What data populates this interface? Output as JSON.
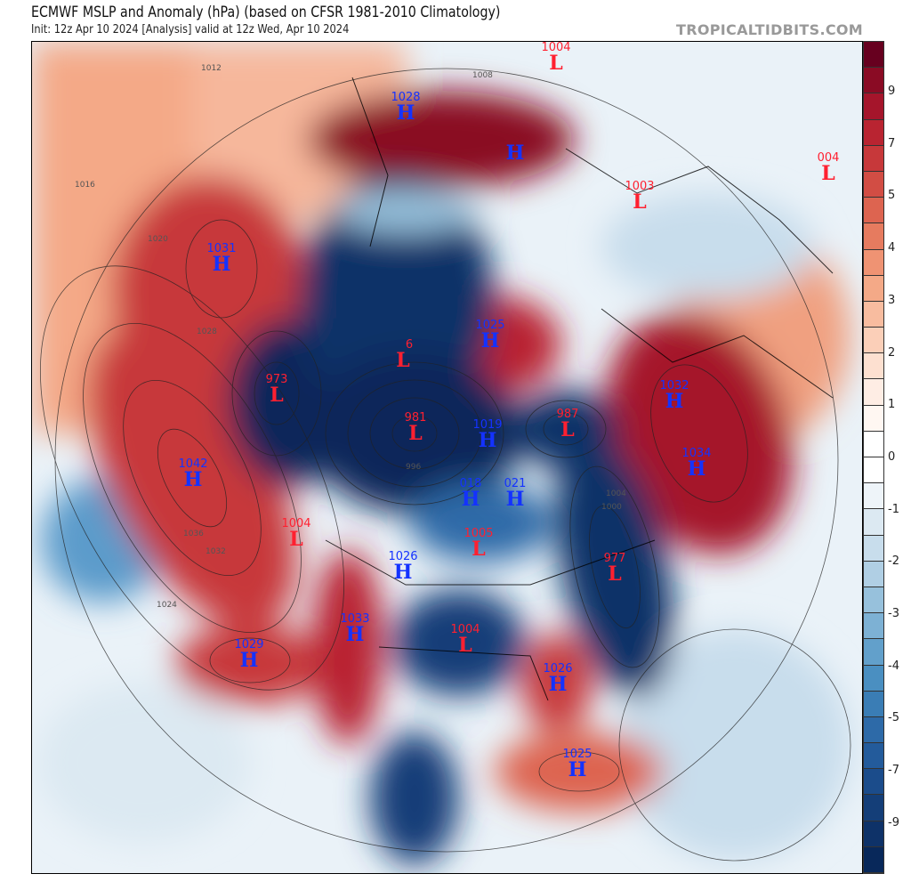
{
  "header": {
    "title": "ECMWF MSLP and Anomaly (hPa) (based on CFSR 1981-2010 Climatology)",
    "subtitle": "Init: 12z Apr 10 2024   [Analysis]   valid at 12z Wed, Apr 10 2024",
    "brand": "TROPICALTIDBITS.COM"
  },
  "centers": [
    {
      "type": "L",
      "value": "1004"
    },
    {
      "type": "H",
      "value": "1028"
    },
    {
      "type": "H",
      "value": ""
    },
    {
      "type": "L",
      "value": "1003"
    },
    {
      "type": "L",
      "value": "004"
    },
    {
      "type": "H",
      "value": "1031"
    },
    {
      "type": "H",
      "value": "1025"
    },
    {
      "type": "L",
      "value": "6"
    },
    {
      "type": "L",
      "value": "973"
    },
    {
      "type": "H",
      "value": "1032"
    },
    {
      "type": "L",
      "value": "981"
    },
    {
      "type": "H",
      "value": "1019"
    },
    {
      "type": "L",
      "value": "987"
    },
    {
      "type": "H",
      "value": "1042"
    },
    {
      "type": "H",
      "value": "1034"
    },
    {
      "type": "H",
      "value": "018"
    },
    {
      "type": "H",
      "value": "021"
    },
    {
      "type": "L",
      "value": "1004"
    },
    {
      "type": "L",
      "value": "1005"
    },
    {
      "type": "H",
      "value": "1026"
    },
    {
      "type": "L",
      "value": "977"
    },
    {
      "type": "H",
      "value": "1033"
    },
    {
      "type": "H",
      "value": "1029"
    },
    {
      "type": "L",
      "value": "1004"
    },
    {
      "type": "H",
      "value": "1026"
    },
    {
      "type": "H",
      "value": "1025"
    }
  ],
  "contour_labels": [
    "1012",
    "1016",
    "1008",
    "1020",
    "1024",
    "1028",
    "1032",
    "1036",
    "996",
    "1000",
    "1004"
  ],
  "colorbar": {
    "ticks": [
      "9",
      "7",
      "5",
      "4",
      "3",
      "2",
      "1",
      "0",
      "-1",
      "-2",
      "-3",
      "-4",
      "-5",
      "-7",
      "-9"
    ],
    "colors": [
      "#67001f",
      "#8a0b24",
      "#a5152b",
      "#b92431",
      "#c7383a",
      "#d24d44",
      "#dd6450",
      "#e67b5f",
      "#ef9373",
      "#f4a987",
      "#f8bc9f",
      "#fbcfb8",
      "#fde0d0",
      "#feede4",
      "#fff7f2",
      "#ffffff",
      "#ffffff",
      "#eef4f9",
      "#dce9f2",
      "#c8ddec",
      "#b0cfe4",
      "#97c1dc",
      "#7db1d4",
      "#62a0cb",
      "#4a8fc1",
      "#3a7db5",
      "#2d6aa8",
      "#235b9b",
      "#1b4c8b",
      "#143e78",
      "#0e3268",
      "#08285a"
    ]
  }
}
